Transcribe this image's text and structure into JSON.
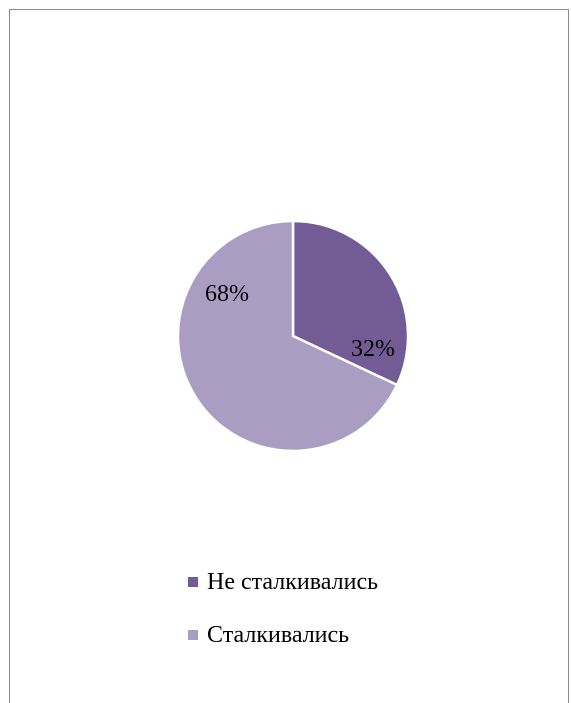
{
  "chart_data": {
    "type": "pie",
    "title": "",
    "slices": [
      {
        "label": "Не сталкивались",
        "value": 32,
        "data_label": "32%",
        "color": "#735b95"
      },
      {
        "label": "Сталкивались",
        "value": 68,
        "data_label": "68%",
        "color": "#a99ec2"
      }
    ],
    "legend_position": "bottom"
  }
}
